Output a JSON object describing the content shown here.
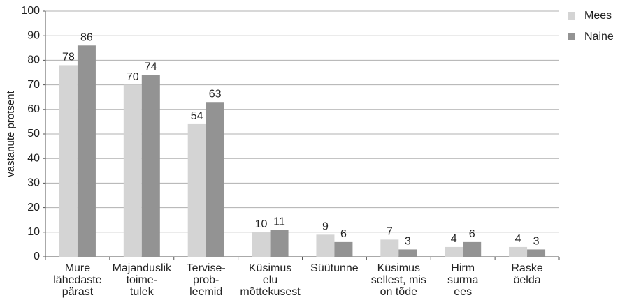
{
  "chart_data": {
    "type": "bar",
    "y_label": "vastanute protsent",
    "categories": [
      "Mure\nlähedaste\npärast",
      "Majanduslik\ntoime-\ntulek",
      "Tervise-\nprob-\nleemid",
      "Küsimus\nelu\nmõttekusest",
      "Süütunne",
      "Küsimus\nsellest, mis\non tõde",
      "Hirm\nsurma\nees",
      "Raske\nöelda"
    ],
    "series": [
      {
        "name": "Mees",
        "color": "#d4d4d4",
        "values": [
          78,
          70,
          54,
          10,
          9,
          7,
          4,
          4
        ]
      },
      {
        "name": "Naine",
        "color": "#939393",
        "values": [
          86,
          74,
          63,
          11,
          6,
          3,
          6,
          3
        ]
      }
    ],
    "ylim": [
      0,
      100
    ],
    "yticks": [
      0,
      10,
      20,
      30,
      40,
      50,
      60,
      70,
      80,
      90,
      100
    ],
    "grid": true,
    "legend": "right"
  }
}
